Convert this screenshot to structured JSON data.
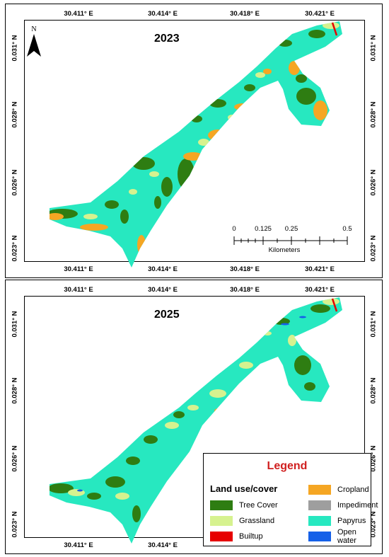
{
  "panels": [
    {
      "title": "2023",
      "lon_labels": [
        "30.411° E",
        "30.414° E",
        "30.418° E",
        "30.421° E"
      ],
      "lat_labels": [
        "0.031° N",
        "0.028° N",
        "0.026° N",
        "0.023° N"
      ]
    },
    {
      "title": "2025",
      "lon_labels": [
        "30.411° E",
        "30.414° E",
        "30.418° E",
        "30.421° E"
      ],
      "lat_labels": [
        "0.031° N",
        "0.028° N",
        "0.026° N",
        "0.023° N"
      ]
    }
  ],
  "north_arrow": {
    "label": "N",
    "icon": "north-arrow-icon"
  },
  "scale_bar": {
    "labels": [
      "0",
      "0.125",
      "0.25",
      "0.5"
    ],
    "unit": "Kilometers"
  },
  "legend": {
    "title": "Legend",
    "subtitle": "Land use/cover",
    "items": [
      {
        "label": "Cropland",
        "color": "#f5a623"
      },
      {
        "label": "Tree Cover",
        "color": "#2e7d12"
      },
      {
        "label": "Impediment",
        "color": "#9e9e9e"
      },
      {
        "label": "Grassland",
        "color": "#d6f28f"
      },
      {
        "label": "Papyrus",
        "color": "#27e8c0"
      },
      {
        "label": "Builtup",
        "color": "#e60000"
      },
      {
        "label": "Open water",
        "color": "#1560e8"
      }
    ]
  }
}
